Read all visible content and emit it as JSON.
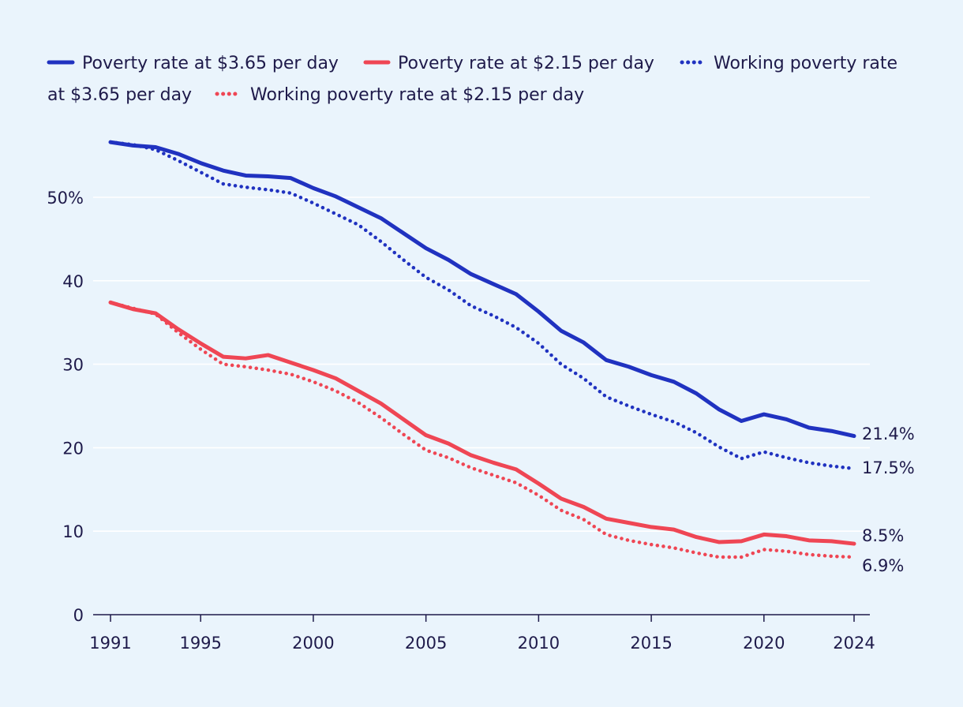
{
  "chart_data": {
    "type": "line",
    "title": "",
    "xlabel": "",
    "ylabel": "",
    "xlim": [
      1991,
      2024
    ],
    "ylim": [
      0,
      60
    ],
    "x_ticks": [
      1991,
      1995,
      2000,
      2005,
      2010,
      2015,
      2020,
      2024
    ],
    "y_ticks": [
      0,
      10,
      20,
      30,
      40,
      50
    ],
    "y_tick_labels": [
      "0",
      "10",
      "20",
      "30",
      "40",
      "50%"
    ],
    "legend_position": "top",
    "series": [
      {
        "name": "Poverty rate at $3.65 per day",
        "style": "solid",
        "color": "#2032c0",
        "end_label": "21.4%",
        "x": [
          1991,
          1992,
          1993,
          1994,
          1995,
          1996,
          1997,
          1998,
          1999,
          2000,
          2001,
          2002,
          2003,
          2004,
          2005,
          2006,
          2007,
          2008,
          2009,
          2010,
          2011,
          2012,
          2013,
          2014,
          2015,
          2016,
          2017,
          2018,
          2019,
          2020,
          2021,
          2022,
          2023,
          2024
        ],
        "values": [
          56.6,
          56.2,
          56.0,
          55.2,
          54.1,
          53.2,
          52.6,
          52.5,
          52.3,
          51.1,
          50.1,
          48.8,
          47.5,
          45.7,
          43.9,
          42.5,
          40.8,
          39.6,
          38.4,
          36.3,
          34.0,
          32.6,
          30.5,
          29.7,
          28.7,
          27.9,
          26.5,
          24.6,
          23.2,
          24.0,
          23.4,
          22.4,
          22.0,
          21.4
        ]
      },
      {
        "name": "Poverty rate at $2.15 per day",
        "style": "solid",
        "color": "#ef4654",
        "end_label": "8.5%",
        "x": [
          1991,
          1992,
          1993,
          1994,
          1995,
          1996,
          1997,
          1998,
          1999,
          2000,
          2001,
          2002,
          2003,
          2004,
          2005,
          2006,
          2007,
          2008,
          2009,
          2010,
          2011,
          2012,
          2013,
          2014,
          2015,
          2016,
          2017,
          2018,
          2019,
          2020,
          2021,
          2022,
          2023,
          2024
        ],
        "values": [
          37.4,
          36.6,
          36.1,
          34.2,
          32.5,
          30.9,
          30.7,
          31.1,
          30.2,
          29.3,
          28.3,
          26.8,
          25.3,
          23.4,
          21.5,
          20.5,
          19.1,
          18.2,
          17.4,
          15.7,
          13.9,
          12.9,
          11.5,
          11.0,
          10.5,
          10.2,
          9.3,
          8.7,
          8.8,
          9.6,
          9.4,
          8.9,
          8.8,
          8.5
        ]
      },
      {
        "name": "Working poverty rate at $3.65 per day",
        "style": "dotted",
        "color": "#2032c0",
        "end_label": "17.5%",
        "x": [
          1991,
          1992,
          1993,
          1994,
          1995,
          1996,
          1997,
          1998,
          1999,
          2000,
          2001,
          2002,
          2003,
          2004,
          2005,
          2006,
          2007,
          2008,
          2009,
          2010,
          2011,
          2012,
          2013,
          2014,
          2015,
          2016,
          2017,
          2018,
          2019,
          2020,
          2021,
          2022,
          2023,
          2024
        ],
        "values": [
          56.6,
          56.3,
          55.7,
          54.4,
          53.0,
          51.6,
          51.2,
          50.9,
          50.5,
          49.3,
          48.0,
          46.7,
          44.7,
          42.5,
          40.4,
          38.9,
          37.0,
          35.8,
          34.4,
          32.5,
          30.0,
          28.3,
          26.1,
          25.0,
          24.0,
          23.1,
          21.8,
          20.1,
          18.7,
          19.5,
          18.8,
          18.2,
          17.8,
          17.5
        ]
      },
      {
        "name": "Working poverty rate at $2.15 per day",
        "style": "dotted",
        "color": "#ef4654",
        "end_label": "6.9%",
        "x": [
          1991,
          1992,
          1993,
          1994,
          1995,
          1996,
          1997,
          1998,
          1999,
          2000,
          2001,
          2002,
          2003,
          2004,
          2005,
          2006,
          2007,
          2008,
          2009,
          2010,
          2011,
          2012,
          2013,
          2014,
          2015,
          2016,
          2017,
          2018,
          2019,
          2020,
          2021,
          2022,
          2023,
          2024
        ],
        "values": [
          37.4,
          36.7,
          36.0,
          33.8,
          31.8,
          30.0,
          29.7,
          29.3,
          28.8,
          27.9,
          26.8,
          25.4,
          23.6,
          21.6,
          19.7,
          18.8,
          17.6,
          16.7,
          15.8,
          14.3,
          12.5,
          11.4,
          9.6,
          8.9,
          8.4,
          8.0,
          7.4,
          6.9,
          6.9,
          7.8,
          7.6,
          7.2,
          7.0,
          6.9
        ]
      }
    ]
  }
}
